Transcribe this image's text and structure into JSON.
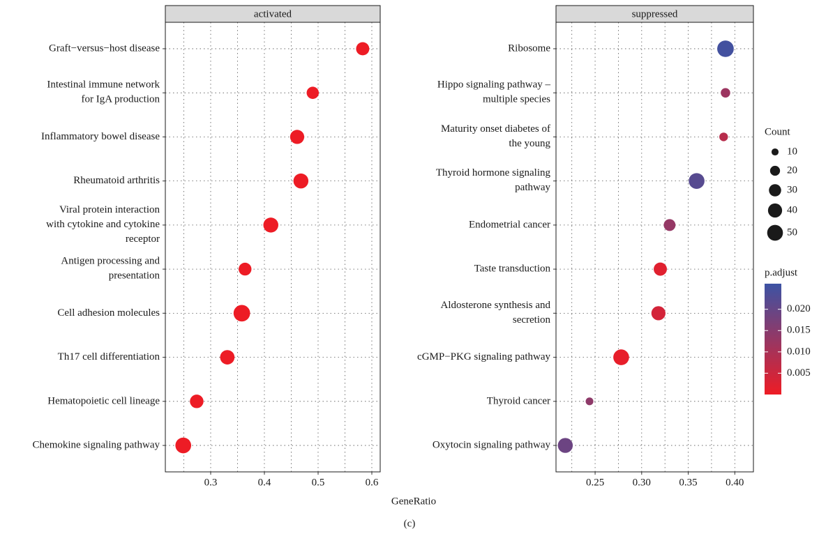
{
  "chart_data": {
    "type": "dot",
    "x_label": "GeneRatio",
    "caption": "(c)",
    "panels": [
      {
        "strip": "activated",
        "categories": [
          "Graft−versus−host disease",
          "Intestinal immune network\nfor IgA production",
          "Inflammatory bowel disease",
          "Rheumatoid arthritis",
          "Viral protein interaction\nwith cytokine and cytokine\nreceptor",
          "Antigen processing and\npresentation",
          "Cell adhesion molecules",
          "Th17 cell differentiation",
          "Hematopoietic cell lineage",
          "Chemokine signaling pathway"
        ],
        "x": [
          0.583,
          0.49,
          0.461,
          0.468,
          0.412,
          0.364,
          0.358,
          0.331,
          0.274,
          0.249
        ],
        "count": [
          35,
          30,
          40,
          45,
          45,
          33,
          55,
          42,
          37,
          50
        ],
        "p_adjust": [
          0.0001,
          0.0001,
          0.0001,
          0.0001,
          0.0001,
          0.0001,
          0.0001,
          0.0001,
          0.0001,
          0.0001
        ],
        "xlim": [
          0.2156,
          0.6156
        ],
        "xticks": [
          0.3,
          0.4,
          0.5,
          0.6
        ],
        "xminorticks": [
          0.25,
          0.35,
          0.45,
          0.55
        ]
      },
      {
        "strip": "suppressed",
        "categories": [
          "Ribosome",
          "Hippo signaling pathway –\nmultiple species",
          "Maturity onset diabetes of\nthe young",
          "Thyroid hormone signaling\npathway",
          "Endometrial cancer",
          "Taste transduction",
          "Aldosterone synthesis and\nsecretion",
          "cGMP−PKG signaling pathway",
          "Thyroid cancer",
          "Oxytocin signaling pathway"
        ],
        "x": [
          0.39,
          0.39,
          0.388,
          0.359,
          0.33,
          0.32,
          0.318,
          0.278,
          0.244,
          0.218
        ],
        "count": [
          55,
          18,
          15,
          50,
          28,
          35,
          40,
          50,
          12,
          45
        ],
        "p_adjust": [
          0.025,
          0.012,
          0.008,
          0.022,
          0.013,
          0.002,
          0.004,
          0.001,
          0.014,
          0.019
        ],
        "xlim": [
          0.208,
          0.42
        ],
        "xticks": [
          0.25,
          {
            "value": 0.3,
            "label": "0.30"
          },
          0.35,
          {
            "value": 0.4,
            "label": "0.40"
          }
        ],
        "xminorticks": [
          0.225,
          0.275,
          0.325,
          0.375
        ]
      }
    ],
    "size_legend": {
      "title": "Count",
      "values": [
        10,
        20,
        30,
        40,
        50
      ]
    },
    "color_legend": {
      "title": "p.adjust",
      "lim": [
        0,
        0.026
      ],
      "ticks": [
        {
          "value": 0.02,
          "label": "0.020"
        },
        0.015,
        {
          "value": 0.01,
          "label": "0.010"
        },
        0.005
      ],
      "low_color": "#ee1c25",
      "high_color": "#3c53a4"
    },
    "grid": true
  }
}
